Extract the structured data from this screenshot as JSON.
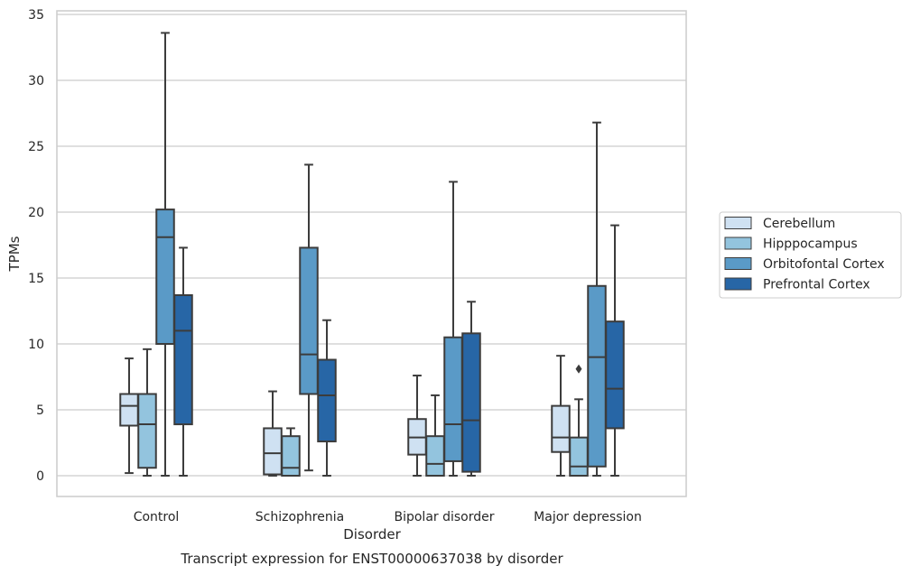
{
  "chart_data": {
    "type": "box",
    "xlabel": "Disorder",
    "ylabel": "TPMs",
    "caption": "Transcript expression for ENST00000637038 by disorder",
    "ylim": [
      -1.6,
      35.3
    ],
    "yticks": [
      0,
      5,
      10,
      15,
      20,
      25,
      30,
      35
    ],
    "grid": true,
    "legend_position": "right",
    "categories": [
      "Control",
      "Schizophrenia",
      "Bipolar disorder",
      "Major depression"
    ],
    "series": [
      {
        "name": "Cerebellum",
        "color": "#cfe1f2",
        "boxes": [
          {
            "whisker_low": 0.2,
            "q1": 3.8,
            "median": 5.3,
            "q3": 6.2,
            "whisker_high": 8.9,
            "outliers": []
          },
          {
            "whisker_low": 0.0,
            "q1": 0.1,
            "median": 1.7,
            "q3": 3.6,
            "whisker_high": 6.4,
            "outliers": []
          },
          {
            "whisker_low": 0.0,
            "q1": 1.6,
            "median": 2.9,
            "q3": 4.3,
            "whisker_high": 7.6,
            "outliers": []
          },
          {
            "whisker_low": 0.0,
            "q1": 1.8,
            "median": 2.9,
            "q3": 5.3,
            "whisker_high": 9.1,
            "outliers": []
          }
        ]
      },
      {
        "name": "Hipppocampus",
        "color": "#93c4de",
        "boxes": [
          {
            "whisker_low": 0.0,
            "q1": 0.6,
            "median": 3.9,
            "q3": 6.2,
            "whisker_high": 9.6,
            "outliers": []
          },
          {
            "whisker_low": 0.0,
            "q1": 0.0,
            "median": 0.6,
            "q3": 3.0,
            "whisker_high": 3.6,
            "outliers": []
          },
          {
            "whisker_low": 0.0,
            "q1": 0.0,
            "median": 0.9,
            "q3": 3.0,
            "whisker_high": 6.1,
            "outliers": []
          },
          {
            "whisker_low": 0.0,
            "q1": 0.0,
            "median": 0.7,
            "q3": 2.9,
            "whisker_high": 5.8,
            "outliers": [
              8.1
            ]
          }
        ]
      },
      {
        "name": "Orbitofontal Cortex",
        "color": "#5a9ac7",
        "boxes": [
          {
            "whisker_low": 0.0,
            "q1": 10.0,
            "median": 18.1,
            "q3": 20.2,
            "whisker_high": 33.6,
            "outliers": []
          },
          {
            "whisker_low": 0.4,
            "q1": 6.2,
            "median": 9.2,
            "q3": 17.3,
            "whisker_high": 23.6,
            "outliers": []
          },
          {
            "whisker_low": 0.0,
            "q1": 1.1,
            "median": 3.9,
            "q3": 10.5,
            "whisker_high": 22.3,
            "outliers": []
          },
          {
            "whisker_low": 0.0,
            "q1": 0.7,
            "median": 9.0,
            "q3": 14.4,
            "whisker_high": 26.8,
            "outliers": []
          }
        ]
      },
      {
        "name": "Prefrontal Cortex",
        "color": "#2766a6",
        "boxes": [
          {
            "whisker_low": 0.0,
            "q1": 3.9,
            "median": 11.0,
            "q3": 13.7,
            "whisker_high": 17.3,
            "outliers": []
          },
          {
            "whisker_low": 0.0,
            "q1": 2.6,
            "median": 6.1,
            "q3": 8.8,
            "whisker_high": 11.8,
            "outliers": []
          },
          {
            "whisker_low": 0.0,
            "q1": 0.3,
            "median": 4.2,
            "q3": 10.8,
            "whisker_high": 13.2,
            "outliers": []
          },
          {
            "whisker_low": 0.0,
            "q1": 3.6,
            "median": 6.6,
            "q3": 11.7,
            "whisker_high": 19.0,
            "outliers": []
          }
        ]
      }
    ]
  }
}
